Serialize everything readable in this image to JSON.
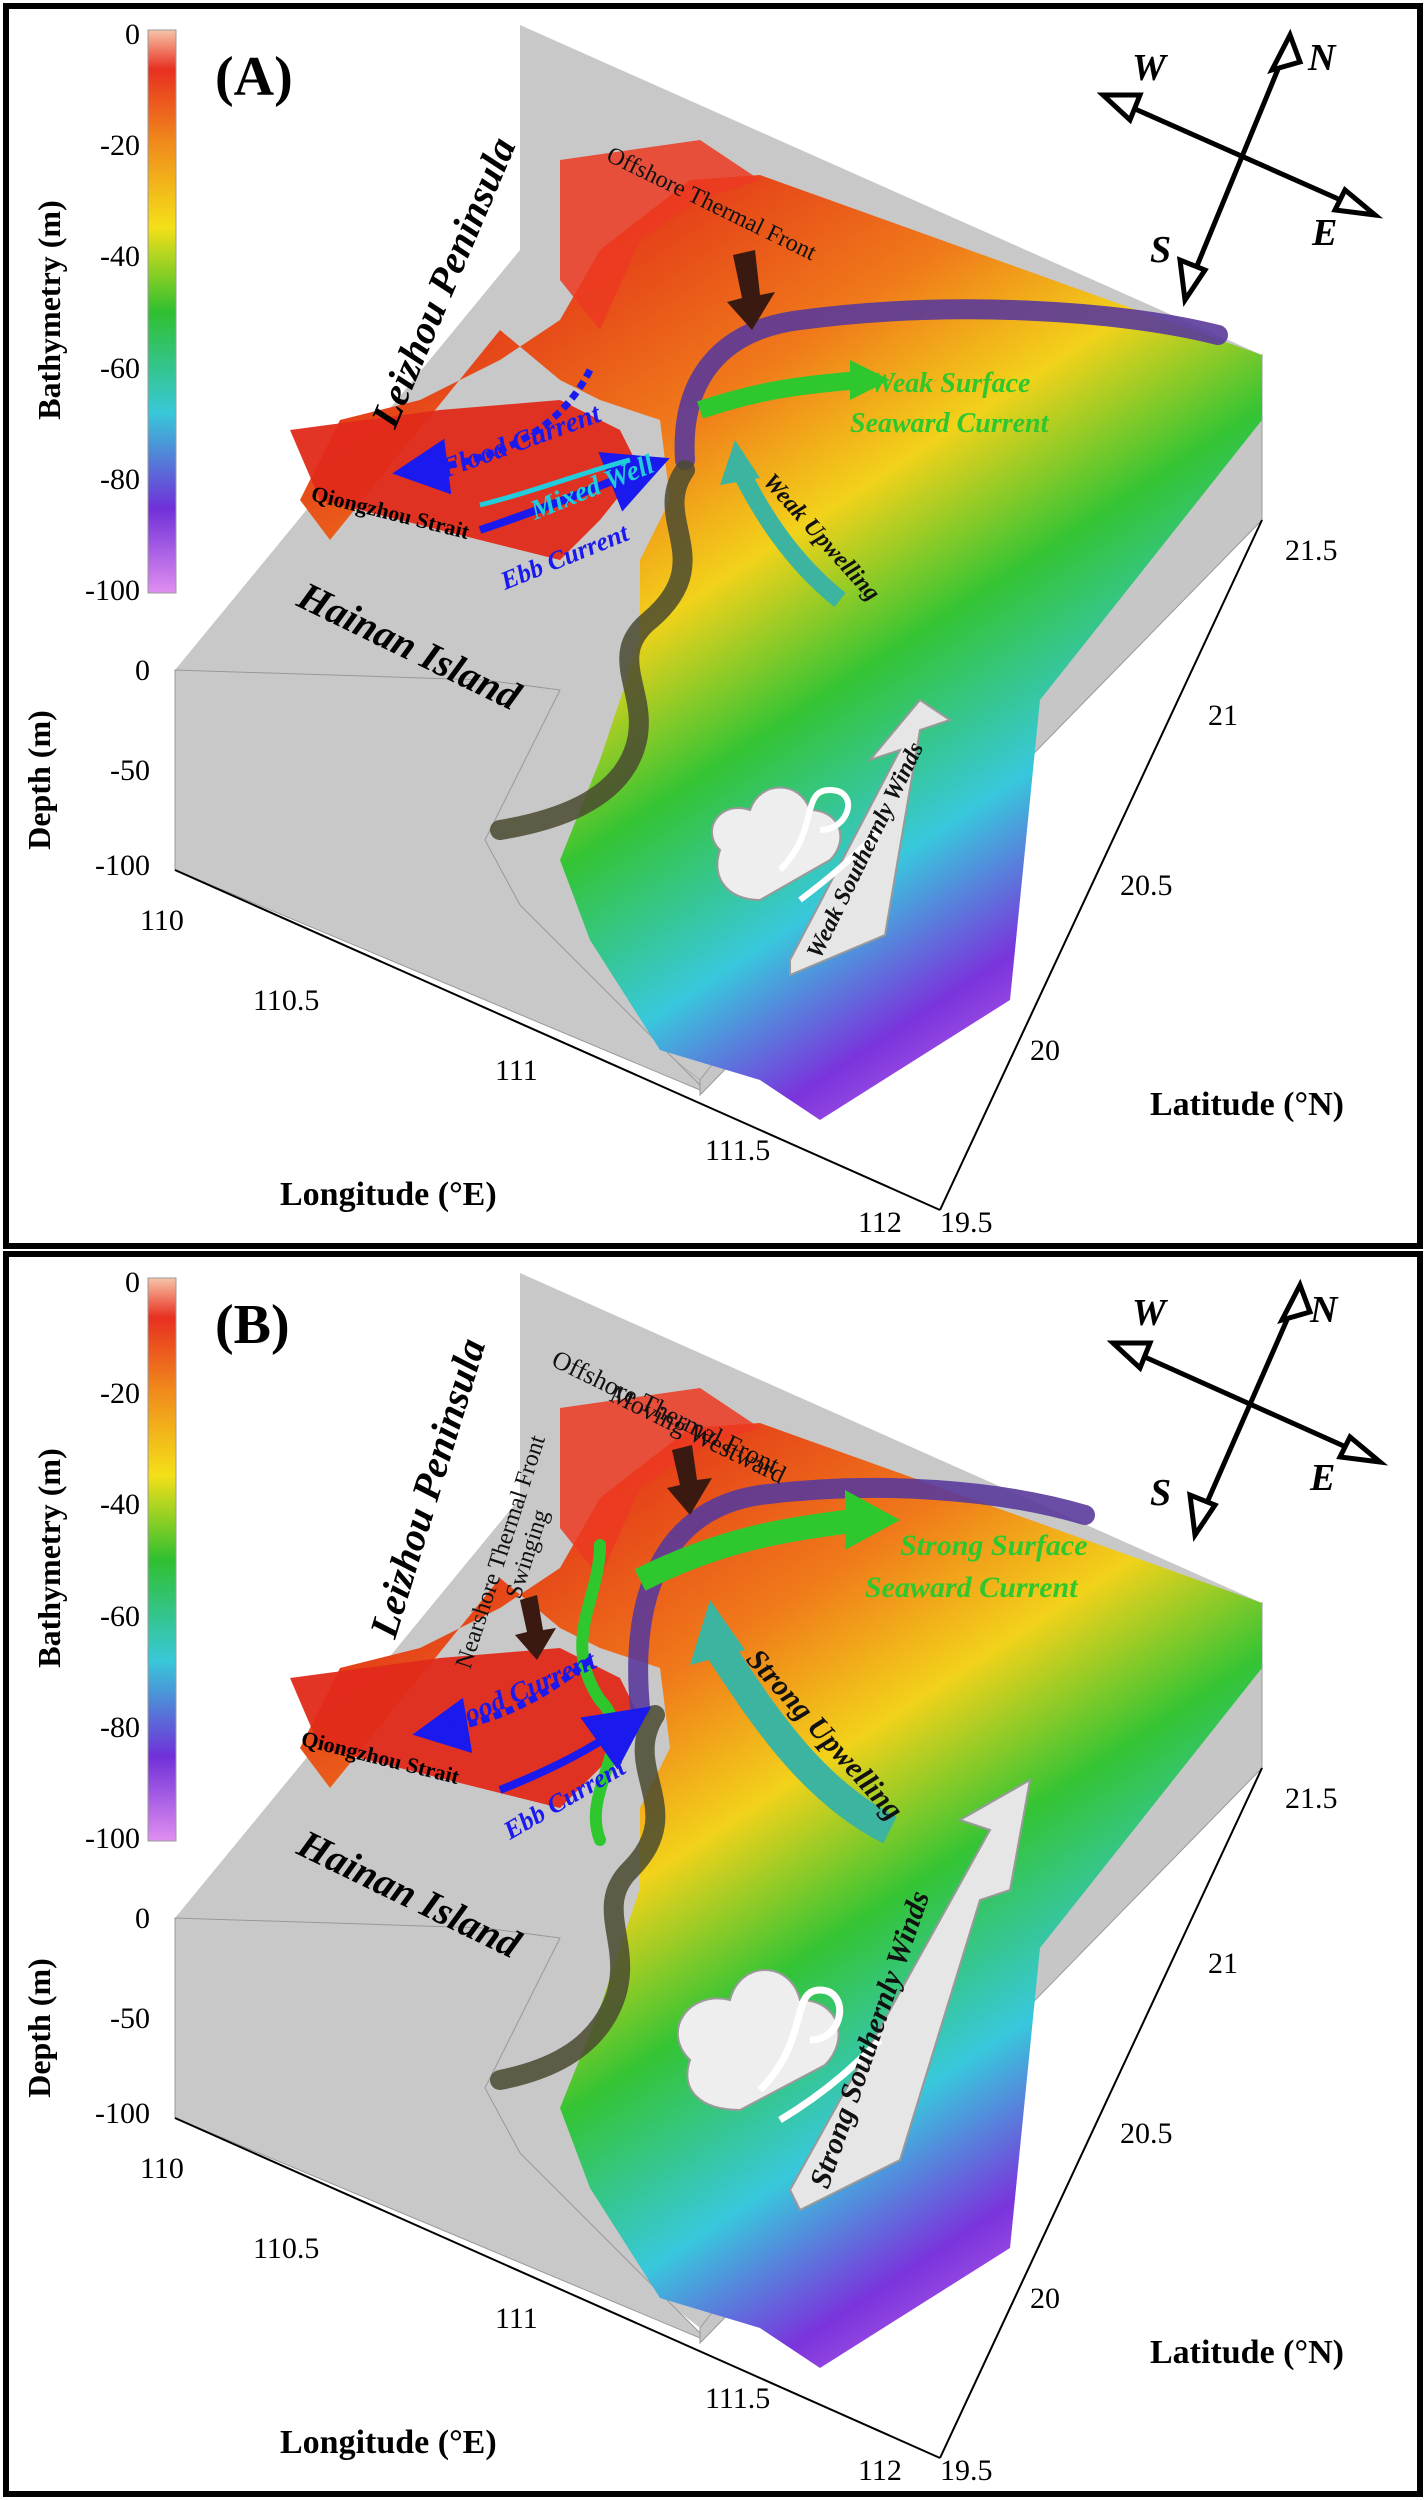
{
  "colors": {
    "frame": "#000000",
    "land": "#c8c8c8",
    "front_line": "#5a3a9a",
    "nearshore_line": "#4a4a30",
    "green_current": "#2ec82e",
    "upwelling": "#3cb4a0",
    "flood_ebb": "#1a1aee",
    "mixed_well": "#22ccdd",
    "wind_arrow": "#e6e6e6"
  },
  "colorbar": {
    "label": "Bathymetry (m)",
    "ticks": [
      "0",
      "-20",
      "-40",
      "-60",
      "-80",
      "-100"
    ],
    "stops": [
      "#f7c4a8",
      "#e83020",
      "#f08a1c",
      "#f4e018",
      "#30c030",
      "#38c8d8",
      "#7030d8",
      "#e08ef0"
    ]
  },
  "panels": [
    {
      "label": "(A)",
      "axes": {
        "depth_label": "Depth (m)",
        "depth_ticks": [
          "0",
          "-50",
          "-100"
        ],
        "lon_label": "Longitude (°E)",
        "lon_ticks": [
          "110",
          "110.5",
          "111",
          "111.5",
          "112"
        ],
        "lat_label": "Latitude (°N)",
        "lat_ticks": [
          "21.5",
          "21",
          "20.5",
          "20",
          "19.5"
        ]
      },
      "compass": {
        "n": "N",
        "s": "S",
        "e": "E",
        "w": "W"
      },
      "texts": {
        "peninsula": "Leizhou Peninsula",
        "island": "Hainan Island",
        "strait": "Qiongzhou Strait",
        "flood": "Flood Current",
        "mixed": "Mixed Well",
        "ebb": "Ebb Current",
        "offshore_front": "Offshore Thermal Front",
        "offshore_front_2": "",
        "nearshore_front": "",
        "nearshore_front_2": "",
        "surface_current": "Weak Surface",
        "surface_current_2": "Seaward Current",
        "upwelling": "Weak Upwelling",
        "winds": "Weak Southernly Winds"
      }
    },
    {
      "label": "(B)",
      "axes": {
        "depth_label": "Depth (m)",
        "depth_ticks": [
          "0",
          "-50",
          "-100"
        ],
        "lon_label": "Longitude (°E)",
        "lon_ticks": [
          "110",
          "110.5",
          "111",
          "111.5",
          "112"
        ],
        "lat_label": "Latitude (°N)",
        "lat_ticks": [
          "21.5",
          "21",
          "20.5",
          "20",
          "19.5"
        ]
      },
      "compass": {
        "n": "N",
        "s": "S",
        "e": "E",
        "w": "W"
      },
      "texts": {
        "peninsula": "Leizhou Peninsula",
        "island": "Hainan Island",
        "strait": "Qiongzhou Strait",
        "flood": "Flood Current",
        "mixed": "",
        "ebb": "Ebb Current",
        "offshore_front": "Offshore Thermal Front",
        "offshore_front_2": "Moving Westward",
        "nearshore_front": "Nearshore Thermal Front",
        "nearshore_front_2": "Swinging",
        "surface_current": "Strong Surface",
        "surface_current_2": "Seaward Current",
        "upwelling": "Strong Upwelling",
        "winds": "Strong Southernly Winds"
      }
    }
  ]
}
